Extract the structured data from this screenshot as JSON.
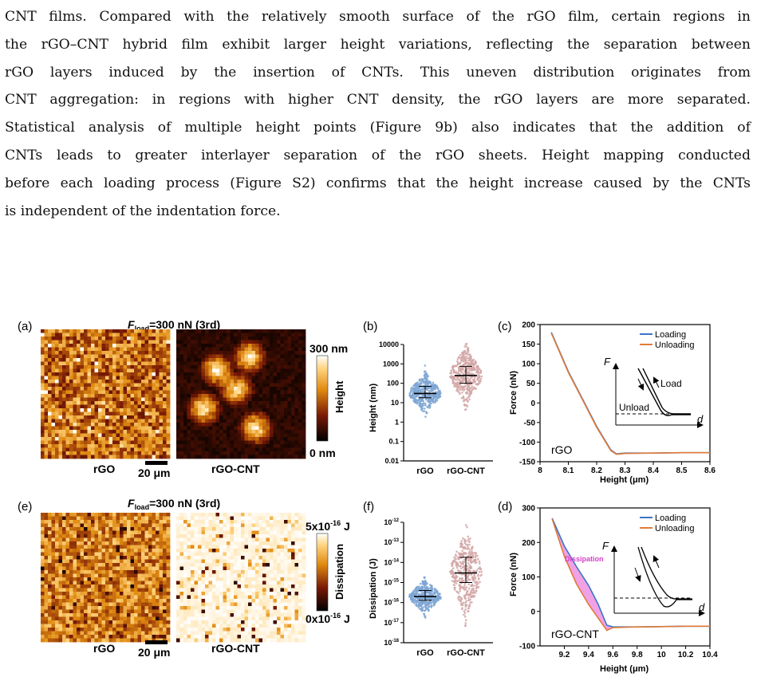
{
  "paragraph": {
    "lines": [
      "CNT films. Compared with the relatively smooth surface of the rGO film, certain regions in",
      "the rGO–CNT hybrid film exhibit larger height variations, reflecting the separation between",
      "rGO layers induced by the insertion of CNTs.  This uneven distribution originates from",
      "CNT aggregation: in regions with higher CNT density, the rGO layers are more separated.",
      "Statistical analysis of multiple height points (Figure 9b) also indicates that the addition of",
      "CNTs leads to greater interlayer separation of the rGO sheets.  Height mapping conducted",
      "before each loading process (Figure S2) confirms that the height increase caused by the CNTs",
      "is independent of the indentation force."
    ]
  },
  "panel_a": {
    "label": "(a)",
    "title_F": "F",
    "title_sub": "load",
    "title_rest": "=300 nN (3rd)",
    "left_caption": "rGO",
    "right_caption": "rGO-CNT",
    "scalebar": "20 μm",
    "colorbar_max": "300 nm",
    "colorbar_min": "0 nm",
    "colorbar_label": "Height"
  },
  "panel_e": {
    "label": "(e)",
    "title_F": "F",
    "title_sub": "load",
    "title_rest": "=300 nN (3rd)",
    "left_caption": "rGO",
    "right_caption": "rGO-CNT",
    "scalebar": "20 μm",
    "colorbar_max_pre": "5x10",
    "colorbar_max_exp": "-16",
    "colorbar_max_unit": " J",
    "colorbar_min_pre": "0x10",
    "colorbar_min_exp": "-16",
    "colorbar_min_unit": " J",
    "colorbar_label": "Dissipation"
  },
  "panel_b": {
    "label": "(b)",
    "ylabel": "Height (nm)",
    "yticks": [
      "10000",
      "1000",
      "100",
      "10",
      "1",
      "0.1",
      "0.01"
    ],
    "categories": [
      "rGO",
      "rGO-CNT"
    ],
    "colors": {
      "rGO": "#7ea6d4",
      "rGO-CNT": "#d3a6a6"
    },
    "median": [
      30,
      250
    ],
    "q1": [
      18,
      100
    ],
    "q3": [
      70,
      750
    ]
  },
  "panel_f": {
    "label": "(f)",
    "ylabel": "Dissipation (J)",
    "ytick_base": "10",
    "ytick_exps": [
      "-12",
      "-13",
      "-14",
      "-15",
      "-16",
      "-17",
      "-18"
    ],
    "categories": [
      "rGO",
      "rGO-CNT"
    ],
    "colors": {
      "rGO": "#7ea6d4",
      "rGO-CNT": "#d3a6a6"
    },
    "median": [
      2e-16,
      3e-15
    ],
    "q1": [
      1.3e-16,
      1e-15
    ],
    "q3": [
      4e-16,
      1.8e-14
    ]
  },
  "chart_data": [
    {
      "type": "line",
      "panel": "(c)",
      "xlabel": "Height (μm)",
      "ylabel": "Force (nN)",
      "xlim": [
        8.0,
        8.6
      ],
      "ylim": [
        -150,
        200
      ],
      "xticks": [
        "8",
        "8.1",
        "8.2",
        "8.3",
        "8.4",
        "8.5",
        "8.6"
      ],
      "yticks": [
        "200",
        "150",
        "100",
        "50",
        "0",
        "-50",
        "-100",
        "-150"
      ],
      "annotation": "rGO",
      "series": [
        {
          "name": "Loading",
          "color": "#3a76c4",
          "x": [
            8.04,
            8.1,
            8.15,
            8.2,
            8.25,
            8.27,
            8.3,
            8.4,
            8.5,
            8.6
          ],
          "y": [
            180,
            80,
            10,
            -60,
            -120,
            -130,
            -128,
            -128,
            -127,
            -127
          ]
        },
        {
          "name": "Unloading",
          "color": "#e07b39",
          "x": [
            8.04,
            8.1,
            8.15,
            8.2,
            8.25,
            8.27,
            8.3,
            8.4,
            8.5,
            8.6
          ],
          "y": [
            178,
            78,
            8,
            -62,
            -122,
            -131,
            -129,
            -128,
            -127,
            -127
          ]
        }
      ],
      "inset": {
        "axis_y": "F",
        "axis_x": "d",
        "load_label": "Load",
        "unload_label": "Unload"
      }
    },
    {
      "type": "line",
      "panel": "(d)",
      "xlabel": "Height (μm)",
      "ylabel": "Force (nN)",
      "xlim": [
        9.0,
        10.4
      ],
      "ylim": [
        -100,
        300
      ],
      "xticks": [
        "9.2",
        "9.4",
        "9.6",
        "9.8",
        "10",
        "10.2",
        "10.4"
      ],
      "yticks": [
        "300",
        "200",
        "100",
        "0",
        "-100"
      ],
      "annotation": "rGO-CNT",
      "dissipation_label": "Dissipation",
      "series": [
        {
          "name": "Loading",
          "color": "#3a76c4",
          "x": [
            9.1,
            9.2,
            9.3,
            9.4,
            9.48,
            9.55,
            9.6,
            9.8,
            10,
            10.2,
            10.4
          ],
          "y": [
            270,
            190,
            130,
            75,
            20,
            -40,
            -45,
            -45,
            -44,
            -43,
            -43
          ]
        },
        {
          "name": "Unloading",
          "color": "#e07b39",
          "x": [
            9.1,
            9.2,
            9.3,
            9.4,
            9.5,
            9.55,
            9.6,
            9.8,
            10,
            10.2,
            10.4
          ],
          "y": [
            268,
            160,
            80,
            20,
            -30,
            -55,
            -47,
            -45,
            -44,
            -43,
            -43
          ]
        }
      ],
      "inset": {
        "axis_y": "F",
        "axis_x": "d"
      }
    }
  ]
}
